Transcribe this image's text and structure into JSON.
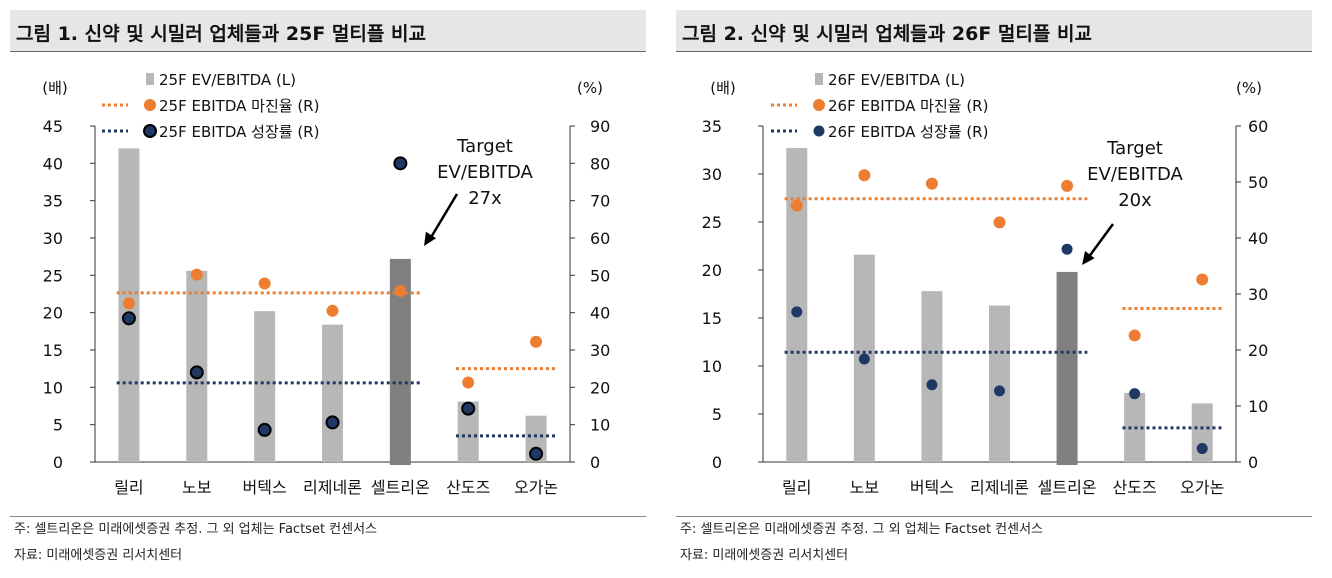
{
  "colors": {
    "bar": "#b7b7b7",
    "bar_highlight": "#808080",
    "margin": "#ed7d31",
    "growth": "#1f3864",
    "title_bg": "#e6e6e6"
  },
  "chart_data": [
    {
      "type": "bar",
      "title": "그림 1. 신약 및 시밀러 업체들과 25F 멀티플 비교",
      "categories": [
        "릴리",
        "노보",
        "버텍스",
        "리제네론",
        "셀트리온",
        "산도즈",
        "오가논"
      ],
      "left_axis": {
        "label": "(배)",
        "ylim": [
          0,
          45
        ],
        "ticks": [
          0,
          5,
          10,
          15,
          20,
          25,
          30,
          35,
          40,
          45
        ]
      },
      "right_axis": {
        "label": "(%)",
        "ylim": [
          0,
          90
        ],
        "ticks": [
          0,
          10,
          20,
          30,
          40,
          50,
          60,
          70,
          80,
          90
        ]
      },
      "legend": [
        "25F EV/EBITDA (L)",
        "25F EBITDA 마진율 (R)",
        "25F EBITDA 성장률 (R)"
      ],
      "series": [
        {
          "name": "25F EV/EBITDA (L)",
          "axis": "left",
          "kind": "bar",
          "values": [
            42,
            25.6,
            20.2,
            18.4,
            27.2,
            8.1,
            6.2
          ],
          "highlight_index": 4
        },
        {
          "name": "25F EBITDA 마진율 (R)",
          "axis": "right",
          "kind": "dot",
          "values": [
            42.5,
            50.2,
            47.8,
            40.5,
            45.8,
            21.3,
            32.2
          ]
        },
        {
          "name": "25F EBITDA 성장률 (R)",
          "axis": "right",
          "kind": "dot",
          "values": [
            38.5,
            24.0,
            8.6,
            10.6,
            80.0,
            14.3,
            2.2
          ]
        }
      ],
      "avg_lines": [
        {
          "series": "25F EBITDA 마진율 (R)",
          "value": 45.3,
          "from": 0,
          "to": 4
        },
        {
          "series": "25F EBITDA 마진율 (R)",
          "value": 25.0,
          "from": 5,
          "to": 6
        },
        {
          "series": "25F EBITDA 성장률 (R)",
          "value": 21.2,
          "from": 0,
          "to": 4
        },
        {
          "series": "25F EBITDA 성장률 (R)",
          "value": 7.0,
          "from": 5,
          "to": 6
        }
      ],
      "annotation": {
        "lines": [
          "Target",
          "EV/EBITDA",
          "27x"
        ],
        "target_index": 4
      },
      "notes": [
        "주: 셀트리온은 미래에셋증권 추정. 그 외 업체는 Factset 컨센서스",
        "자료: 미래에셋증권 리서치센터"
      ]
    },
    {
      "type": "bar",
      "title": "그림 2. 신약 및 시밀러 업체들과 26F 멀티플 비교",
      "categories": [
        "릴리",
        "노보",
        "버텍스",
        "리제네론",
        "셀트리온",
        "산도즈",
        "오가논"
      ],
      "left_axis": {
        "label": "(배)",
        "ylim": [
          0,
          35
        ],
        "ticks": [
          0,
          5,
          10,
          15,
          20,
          25,
          30,
          35
        ]
      },
      "right_axis": {
        "label": "(%)",
        "ylim": [
          0,
          60
        ],
        "ticks": [
          0,
          10,
          20,
          30,
          40,
          50,
          60
        ]
      },
      "legend": [
        "26F EV/EBITDA (L)",
        "26F EBITDA 마진율 (R)",
        "26F EBITDA 성장률 (R)"
      ],
      "series": [
        {
          "name": "26F EV/EBITDA (L)",
          "axis": "left",
          "kind": "bar",
          "values": [
            32.7,
            21.6,
            17.8,
            16.3,
            19.8,
            7.2,
            6.1
          ],
          "highlight_index": 4
        },
        {
          "name": "26F EBITDA 마진율 (R)",
          "axis": "right",
          "kind": "dot",
          "values": [
            45.8,
            51.2,
            49.7,
            42.8,
            49.3,
            22.6,
            32.6
          ]
        },
        {
          "name": "26F EBITDA 성장률 (R)",
          "axis": "right",
          "kind": "dot",
          "values": [
            26.8,
            18.4,
            13.8,
            12.7,
            38.0,
            12.2,
            2.4
          ]
        }
      ],
      "avg_lines": [
        {
          "series": "26F EBITDA 마진율 (R)",
          "value": 47.0,
          "from": 0,
          "to": 4
        },
        {
          "series": "26F EBITDA 마진율 (R)",
          "value": 27.4,
          "from": 5,
          "to": 6
        },
        {
          "series": "26F EBITDA 성장률 (R)",
          "value": 19.6,
          "from": 0,
          "to": 4
        },
        {
          "series": "26F EBITDA 성장률 (R)",
          "value": 6.1,
          "from": 5,
          "to": 6
        }
      ],
      "annotation": {
        "lines": [
          "Target",
          "EV/EBITDA",
          "20x"
        ],
        "target_index": 4
      },
      "notes": [
        "주: 셀트리온은 미래에셋증권 추정. 그 외 업체는 Factset 컨센서스",
        "자료: 미래에셋증권 리서치센터"
      ]
    }
  ]
}
